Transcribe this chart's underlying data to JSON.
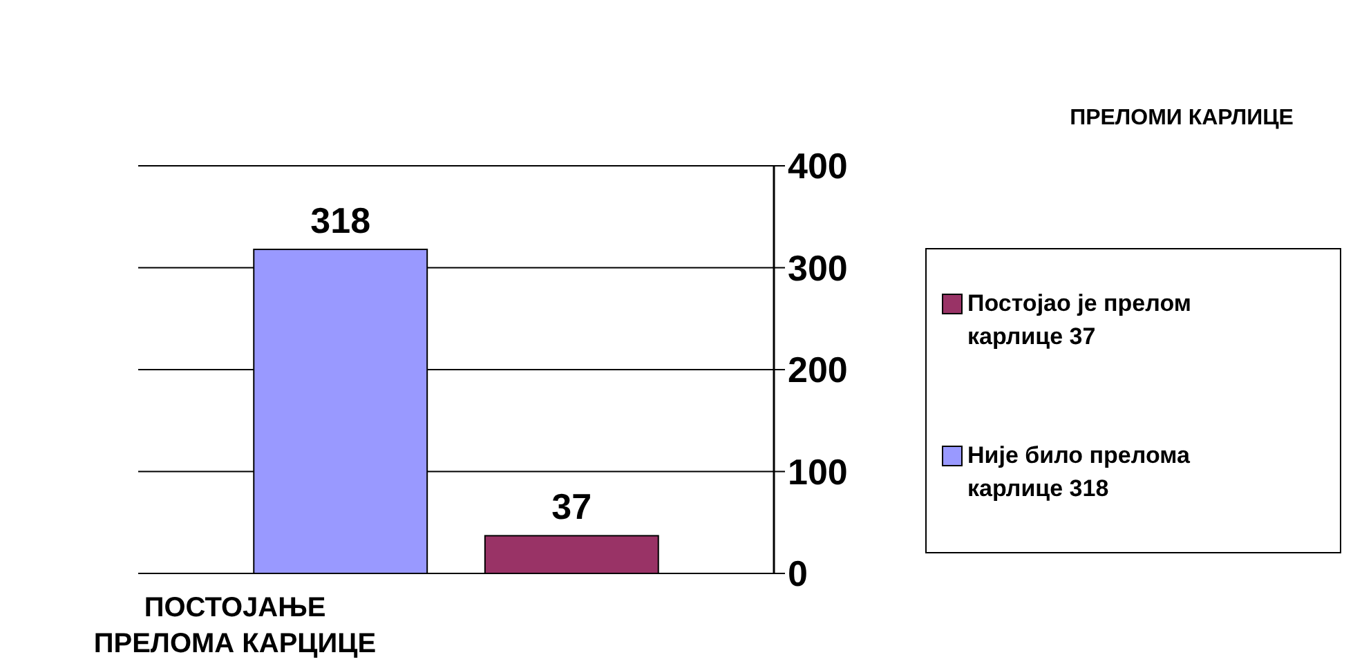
{
  "chart_data": {
    "type": "bar",
    "xlabel": "ПОСТОЈАЊЕ ПРЕЛОМА КАРЦИЦЕ",
    "legend_title": "ПРЕЛОМИ КАРЛИЦЕ",
    "categories": [
      null
    ],
    "series": [
      {
        "name": "Није било прелома карлице 318",
        "color": "#9999ff",
        "values": [
          318
        ]
      },
      {
        "name": "Постојао је прелом карлице 37",
        "color": "#993366",
        "values": [
          37
        ]
      }
    ],
    "ylim": [
      0,
      400
    ],
    "yticks": [
      0,
      100,
      200,
      300,
      400
    ],
    "grid": "y",
    "legend": "right",
    "data_labels": true
  }
}
